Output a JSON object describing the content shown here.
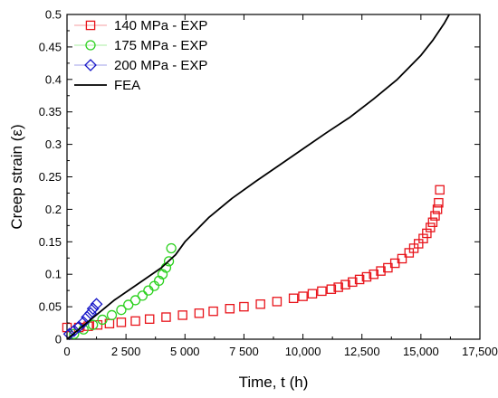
{
  "chart_data": {
    "type": "scatter",
    "title": "",
    "xlabel": "Time, t (h)",
    "ylabel": "Creep strain (ε)",
    "xlim": [
      0,
      17500
    ],
    "ylim": [
      0,
      0.5
    ],
    "x_ticks": [
      0,
      2500,
      5000,
      7500,
      10000,
      12500,
      15000,
      17500
    ],
    "x_tick_labels": [
      "0",
      "2 500",
      "5 000",
      "7 500",
      "10,000",
      "12,500",
      "15,000",
      "17,500"
    ],
    "y_ticks": [
      0,
      0.05,
      0.1,
      0.15,
      0.2,
      0.25,
      0.3,
      0.35,
      0.4,
      0.45,
      0.5
    ],
    "y_tick_labels": [
      "0",
      "0.05",
      "0.1",
      "0.15",
      "0.2",
      "0.25",
      "0.3",
      "0.35",
      "0.4",
      "0.45",
      "0.5"
    ],
    "grid": false,
    "legend_position": "top-left",
    "series": [
      {
        "name": "140 MPa - EXP",
        "marker": "square",
        "color": "#e8141b",
        "x": [
          0,
          500,
          900,
          1300,
          1800,
          2300,
          2900,
          3500,
          4200,
          4900,
          5600,
          6200,
          6900,
          7500,
          8200,
          8900,
          9600,
          10000,
          10400,
          10800,
          11200,
          11500,
          11800,
          12100,
          12400,
          12700,
          13000,
          13300,
          13600,
          13900,
          14200,
          14500,
          14700,
          14900,
          15100,
          15250,
          15400,
          15500,
          15600,
          15700,
          15750,
          15800
        ],
        "y": [
          0.018,
          0.018,
          0.02,
          0.022,
          0.024,
          0.026,
          0.028,
          0.031,
          0.034,
          0.037,
          0.04,
          0.043,
          0.047,
          0.05,
          0.054,
          0.058,
          0.063,
          0.066,
          0.07,
          0.074,
          0.077,
          0.08,
          0.084,
          0.088,
          0.092,
          0.096,
          0.1,
          0.105,
          0.11,
          0.117,
          0.124,
          0.133,
          0.14,
          0.147,
          0.155,
          0.163,
          0.172,
          0.18,
          0.19,
          0.2,
          0.21,
          0.23
        ]
      },
      {
        "name": "175 MPa - EXP",
        "marker": "circle",
        "color": "#2cd11f",
        "x": [
          300,
          700,
          1100,
          1500,
          1900,
          2300,
          2600,
          2900,
          3200,
          3450,
          3700,
          3900,
          4050,
          4200,
          4320,
          4420
        ],
        "y": [
          0.008,
          0.015,
          0.022,
          0.03,
          0.037,
          0.045,
          0.053,
          0.06,
          0.067,
          0.075,
          0.082,
          0.09,
          0.1,
          0.11,
          0.12,
          0.14
        ]
      },
      {
        "name": "200 MPa - EXP",
        "marker": "diamond",
        "color": "#1818c8",
        "x": [
          100,
          300,
          500,
          700,
          850,
          1000,
          1100,
          1250
        ],
        "y": [
          0.008,
          0.013,
          0.019,
          0.026,
          0.034,
          0.04,
          0.047,
          0.054
        ]
      },
      {
        "name": "FEA",
        "marker": "line",
        "color": "#000000",
        "x": [
          0,
          1000,
          2000,
          3000,
          4000,
          4600,
          5000,
          6000,
          7000,
          8000,
          9000,
          10000,
          11000,
          12000,
          13000,
          14000,
          15000,
          15500,
          16000,
          16200
        ],
        "y": [
          0,
          0.03,
          0.06,
          0.085,
          0.11,
          0.13,
          0.15,
          0.187,
          0.217,
          0.243,
          0.268,
          0.293,
          0.318,
          0.342,
          0.37,
          0.4,
          0.437,
          0.46,
          0.487,
          0.5
        ]
      }
    ]
  }
}
